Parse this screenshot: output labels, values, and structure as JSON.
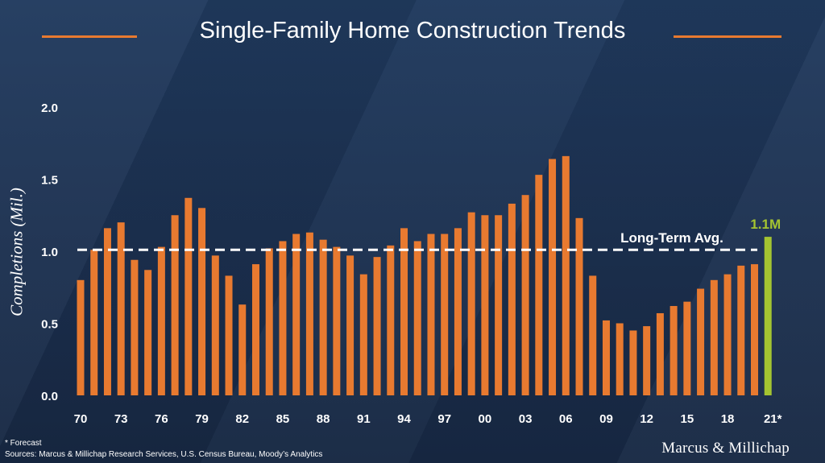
{
  "header": {
    "title": "Single-Family Home Construction Trends"
  },
  "footnote": {
    "forecast": "* Forecast",
    "sources": "Sources: Marcus & Millichap Research Services, U.S. Census Bureau, Moody’s Analytics"
  },
  "logo": {
    "text": "Marcus & Millichap"
  },
  "colors": {
    "bar": "#e87a30",
    "forecast_bar": "#a4c431",
    "avg_line": "#ffffff",
    "text": "#ffffff"
  },
  "chart_data": {
    "type": "bar",
    "title": "Single-Family Home Construction Trends",
    "ylabel": "Completions (Mil.)",
    "xlabel": "",
    "ylim": [
      0,
      2.0
    ],
    "yticks": [
      "0.0",
      "0.5",
      "1.0",
      "1.5",
      "2.0"
    ],
    "grid": false,
    "categories": [
      "70",
      "71",
      "72",
      "73",
      "74",
      "75",
      "76",
      "77",
      "78",
      "79",
      "80",
      "81",
      "82",
      "83",
      "84",
      "85",
      "86",
      "87",
      "88",
      "89",
      "90",
      "91",
      "92",
      "93",
      "94",
      "95",
      "96",
      "97",
      "98",
      "99",
      "00",
      "01",
      "02",
      "03",
      "04",
      "05",
      "06",
      "07",
      "08",
      "09",
      "10",
      "11",
      "12",
      "13",
      "14",
      "15",
      "16",
      "17",
      "18",
      "19",
      "20",
      "21*"
    ],
    "xtick_labels": [
      "70",
      "73",
      "76",
      "79",
      "82",
      "85",
      "88",
      "91",
      "94",
      "97",
      "00",
      "03",
      "06",
      "09",
      "12",
      "15",
      "18",
      "21*"
    ],
    "values": [
      0.8,
      1.01,
      1.16,
      1.2,
      0.94,
      0.87,
      1.03,
      1.25,
      1.37,
      1.3,
      0.97,
      0.83,
      0.63,
      0.91,
      1.02,
      1.07,
      1.12,
      1.13,
      1.08,
      1.03,
      0.97,
      0.84,
      0.96,
      1.04,
      1.16,
      1.07,
      1.12,
      1.12,
      1.16,
      1.27,
      1.25,
      1.25,
      1.33,
      1.39,
      1.53,
      1.64,
      1.66,
      1.23,
      0.83,
      0.52,
      0.5,
      0.45,
      0.48,
      0.57,
      0.62,
      0.65,
      0.74,
      0.8,
      0.84,
      0.9,
      0.91,
      1.1
    ],
    "forecast_index": 51,
    "reference_line": {
      "value": 1.01,
      "label": "Long-Term Avg."
    },
    "annotation": {
      "label": "1.1M"
    }
  }
}
